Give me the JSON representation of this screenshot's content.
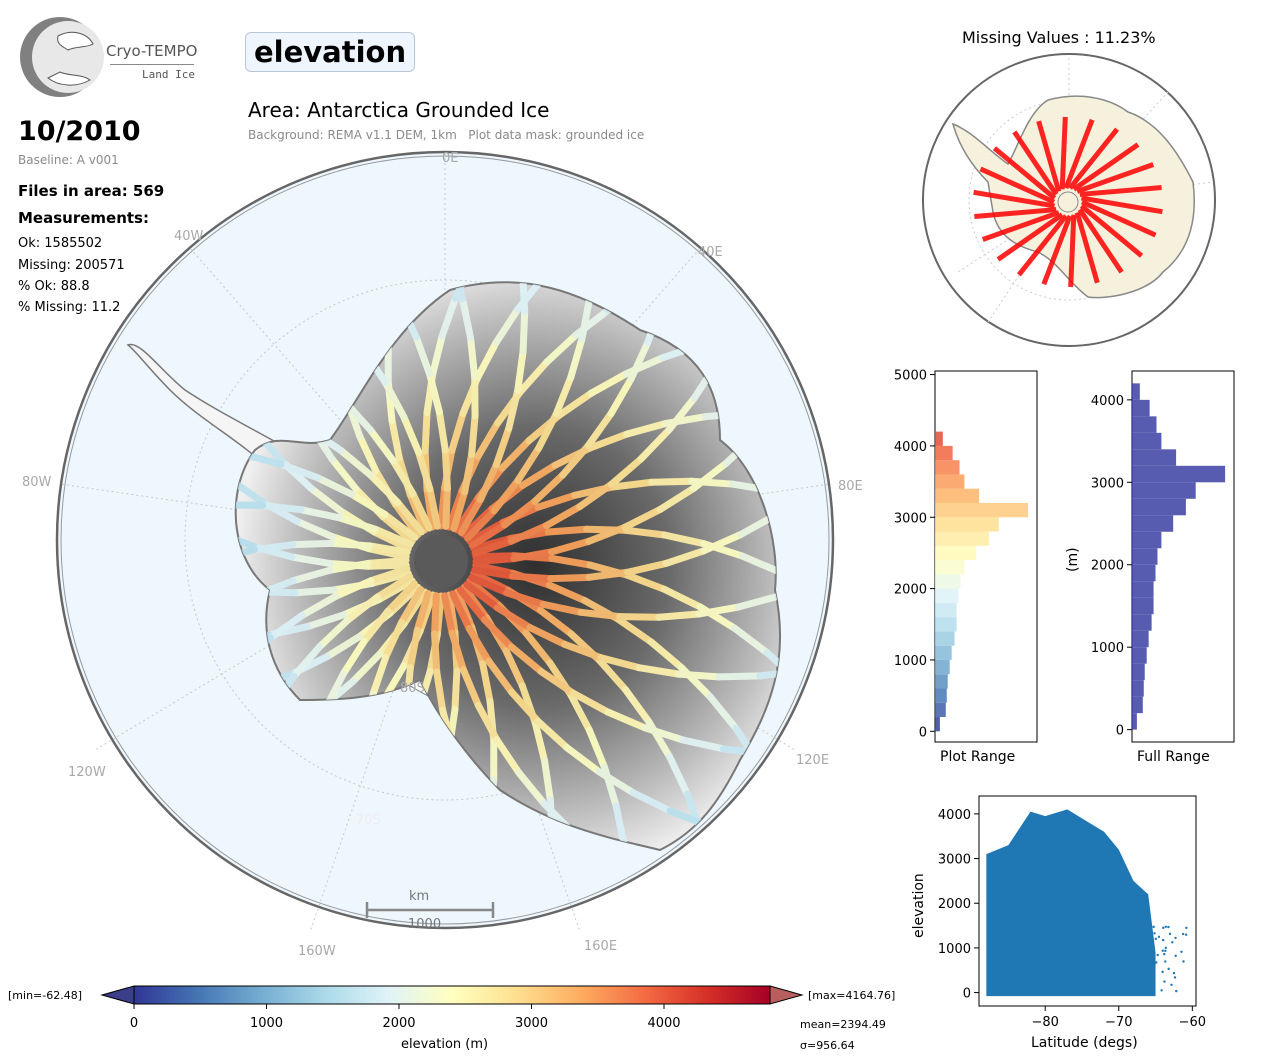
{
  "logo": {
    "name": "Cryo-TEMPO",
    "sub": "Land Ice"
  },
  "header": {
    "parameter": "elevation",
    "date": "10/2010",
    "baseline": "Baseline: A v001",
    "area": "Area: Antarctica Grounded Ice",
    "background": "Background: REMA v1.1 DEM, 1km   Plot data mask: grounded ice"
  },
  "stats": {
    "files": "Files in area: 569",
    "measurements_label": "Measurements:",
    "ok": "Ok: 1585502",
    "missing": "Missing: 200571",
    "pct_ok": "% Ok: 88.8",
    "pct_missing": "% Missing: 11.2"
  },
  "map": {
    "lon_labels": [
      "0E",
      "40E",
      "80E",
      "120E",
      "160E",
      "160W",
      "120W",
      "80W",
      "40W"
    ],
    "lat_labels": [
      "80S",
      "70S"
    ],
    "scale_unit": "km",
    "scale_value": "1000"
  },
  "missing_map": {
    "title": "Missing Values : 11.23%"
  },
  "colorbar": {
    "min_label": "[min=-62.48]",
    "max_label": "[max=4164.76]",
    "mean_label": "mean=2394.49",
    "sigma_label": "σ=956.64",
    "xlabel": "elevation (m)",
    "ticks": [
      "0",
      "1000",
      "2000",
      "3000",
      "4000"
    ],
    "range": [
      0,
      4800
    ],
    "colors": [
      "#313695",
      "#4575b4",
      "#74add1",
      "#abd9e9",
      "#e0f3f8",
      "#ffffbf",
      "#fee090",
      "#fdae61",
      "#f46d43",
      "#d73027",
      "#a50026"
    ]
  },
  "chart_data": [
    {
      "type": "bar",
      "orientation": "horizontal",
      "xlabel": "Plot Range",
      "ylabel": "",
      "ylim": [
        -150,
        5050
      ],
      "yticks": [
        "0",
        "1000",
        "2000",
        "3000",
        "4000",
        "5000"
      ],
      "bins": [
        0,
        200,
        400,
        600,
        800,
        1000,
        1200,
        1400,
        1600,
        1800,
        2000,
        2200,
        2400,
        2600,
        2800,
        3000,
        3200,
        3400,
        3600,
        3800,
        4000
      ],
      "values": [
        0.05,
        0.11,
        0.12,
        0.13,
        0.15,
        0.17,
        0.2,
        0.22,
        0.22,
        0.24,
        0.26,
        0.3,
        0.42,
        0.55,
        0.65,
        0.95,
        0.45,
        0.3,
        0.25,
        0.18,
        0.08
      ]
    },
    {
      "type": "bar",
      "orientation": "horizontal",
      "xlabel": "Full Range",
      "ylabel": "(m)",
      "ylim": [
        -150,
        4350
      ],
      "yticks": [
        "0",
        "1000",
        "2000",
        "3000",
        "4000"
      ],
      "bins": [
        0,
        200,
        400,
        600,
        800,
        1000,
        1200,
        1400,
        1600,
        1800,
        2000,
        2200,
        2400,
        2600,
        2800,
        3000,
        3200,
        3400,
        3600,
        3800,
        4000
      ],
      "values": [
        0.05,
        0.11,
        0.12,
        0.13,
        0.15,
        0.17,
        0.2,
        0.22,
        0.22,
        0.24,
        0.26,
        0.3,
        0.42,
        0.55,
        0.65,
        0.95,
        0.45,
        0.3,
        0.25,
        0.18,
        0.08
      ],
      "color": "#3b3fa3"
    },
    {
      "type": "scatter",
      "xlabel": "Latitude (degs)",
      "ylabel": "elevation",
      "xlim": [
        -89,
        -59.5
      ],
      "ylim": [
        -300,
        4400
      ],
      "xticks": [
        "−80",
        "−70",
        "−60"
      ],
      "yticks": [
        "0",
        "1000",
        "2000",
        "3000",
        "4000"
      ],
      "envelope_top": [
        [
          -88,
          3100
        ],
        [
          -85,
          3300
        ],
        [
          -82,
          4050
        ],
        [
          -80,
          3950
        ],
        [
          -77,
          4100
        ],
        [
          -75,
          3900
        ],
        [
          -72,
          3600
        ],
        [
          -70,
          3200
        ],
        [
          -68,
          2500
        ],
        [
          -66,
          2200
        ],
        [
          -65,
          900
        ]
      ],
      "color": "#1f77b4"
    }
  ]
}
